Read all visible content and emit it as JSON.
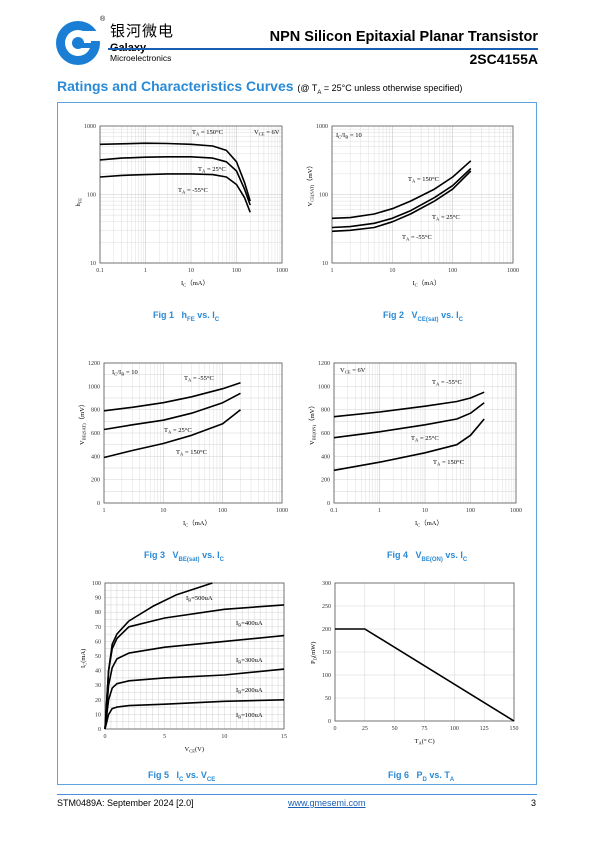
{
  "header": {
    "brand_cn": "银河微电",
    "brand_en": "Galaxy",
    "brand_en2": "Microelectronics",
    "reg_mark": "®",
    "title": "NPN Silicon Epitaxial Planar Transistor",
    "part": "2SC4155A"
  },
  "section": {
    "title": "Ratings and Characteristics Curves",
    "condition": "(@ T",
    "cond_sub": "A",
    "cond_rest": " = 25°C unless otherwise specified)"
  },
  "figures": {
    "fig1": {
      "num": "Fig 1",
      "label": "h",
      "sub": "FE",
      "rest": " vs. I",
      "sub2": "C"
    },
    "fig2": {
      "num": "Fig 2",
      "label": "V",
      "sub": "CE(sat)",
      "rest": " vs. I",
      "sub2": "C"
    },
    "fig3": {
      "num": "Fig 3",
      "label": "V",
      "sub": "BE(sat)",
      "rest": " vs. I",
      "sub2": "C"
    },
    "fig4": {
      "num": "Fig 4",
      "label": "V",
      "sub": "BE(ON)",
      "rest": " vs. I",
      "sub2": "C"
    },
    "fig5": {
      "num": "Fig 5",
      "label": "I",
      "sub": "C",
      "rest": " vs. V",
      "sub2": "CE"
    },
    "fig6": {
      "num": "Fig 6",
      "label": "P",
      "sub": "D",
      "rest": " vs. T",
      "sub2": "A"
    }
  },
  "chart_data": [
    {
      "type": "line",
      "id": "fig1",
      "xscale": "log",
      "yscale": "log",
      "xlim": [
        0.1,
        1000
      ],
      "ylim": [
        10,
        1000
      ],
      "xticks": [
        "0.1",
        "1",
        "10",
        "100",
        "1000"
      ],
      "yticks": [
        "10",
        "100",
        "1000"
      ],
      "xlabel": "I",
      "xlabel_sub": "C",
      "xlabel_unit": "（mA）",
      "ylabel": "h",
      "ylabel_sub": "FE",
      "annotations": [
        "V",
        "CE",
        "= 6V"
      ],
      "series": [
        {
          "name": "TA = 150°C",
          "x": [
            0.1,
            0.3,
            1,
            3,
            10,
            30,
            60,
            100,
            150,
            200
          ],
          "y": [
            540,
            550,
            560,
            555,
            540,
            510,
            440,
            300,
            150,
            80
          ]
        },
        {
          "name": "TA = 25°C",
          "x": [
            0.1,
            0.3,
            1,
            3,
            10,
            30,
            60,
            100,
            150,
            200
          ],
          "y": [
            320,
            340,
            350,
            355,
            355,
            340,
            300,
            220,
            120,
            70
          ]
        },
        {
          "name": "TA = -55°C",
          "x": [
            0.1,
            0.3,
            1,
            3,
            10,
            30,
            60,
            100,
            150,
            200
          ],
          "y": [
            180,
            190,
            195,
            200,
            200,
            195,
            180,
            140,
            90,
            55
          ]
        }
      ],
      "labels": {
        "a": "T",
        "a_sub": "A",
        "t1": "= 150°C",
        "t2": "= 25°C",
        "t3": "= -55°C"
      }
    },
    {
      "type": "line",
      "id": "fig2",
      "xscale": "log",
      "yscale": "log",
      "xlim": [
        1,
        1000
      ],
      "ylim": [
        10,
        1000
      ],
      "xticks": [
        "1",
        "10",
        "100",
        "1000"
      ],
      "yticks": [
        "10",
        "100",
        "1000"
      ],
      "xlabel": "I",
      "xlabel_sub": "C",
      "xlabel_unit": "（mA）",
      "ylabel": "V",
      "ylabel_sub": "CE(SAT)",
      "ylabel_unit": "（mV）",
      "annotations": [
        "I",
        "C",
        "/I",
        "B",
        "= 10"
      ],
      "series": [
        {
          "name": "TA = 150°C",
          "x": [
            1,
            2,
            5,
            10,
            20,
            50,
            100,
            200
          ],
          "y": [
            45,
            46,
            52,
            62,
            80,
            120,
            180,
            310
          ]
        },
        {
          "name": "TA = 25°C",
          "x": [
            1,
            2,
            5,
            10,
            20,
            50,
            100,
            200
          ],
          "y": [
            33,
            34,
            38,
            45,
            58,
            90,
            135,
            240
          ]
        },
        {
          "name": "TA = -55°C",
          "x": [
            1,
            2,
            5,
            10,
            20,
            50,
            100,
            200
          ],
          "y": [
            29,
            30,
            33,
            40,
            52,
            80,
            120,
            220
          ]
        }
      ],
      "labels": {
        "a": "T",
        "a_sub": "A",
        "t1": "= 150°C",
        "t2": "= 25°C",
        "t3": "= -55°C"
      }
    },
    {
      "type": "line",
      "id": "fig3",
      "xscale": "log",
      "yscale": "linear",
      "xlim": [
        1,
        1000
      ],
      "ylim": [
        0,
        1200
      ],
      "xticks": [
        "1",
        "10",
        "100",
        "1000"
      ],
      "yticks": [
        "0",
        "200",
        "400",
        "600",
        "800",
        "1000",
        "1200"
      ],
      "xlabel": "I",
      "xlabel_sub": "C",
      "xlabel_unit": "（mA）",
      "ylabel": "V",
      "ylabel_sub": "BE(SAT)",
      "ylabel_unit": "（mV）",
      "annotations": [
        "I",
        "C",
        "/I",
        "B",
        "= 10"
      ],
      "series": [
        {
          "name": "TA = -55°C",
          "x": [
            1,
            3,
            10,
            30,
            100,
            200
          ],
          "y": [
            790,
            820,
            860,
            910,
            980,
            1030
          ]
        },
        {
          "name": "TA = 25°C",
          "x": [
            1,
            3,
            10,
            30,
            100,
            200
          ],
          "y": [
            630,
            670,
            710,
            770,
            860,
            940
          ]
        },
        {
          "name": "TA = 150°C",
          "x": [
            1,
            3,
            10,
            30,
            100,
            200
          ],
          "y": [
            390,
            450,
            510,
            580,
            680,
            800
          ]
        }
      ],
      "labels": {
        "a": "T",
        "a_sub": "A",
        "t1": "= -55°C",
        "t2": "= 25°C",
        "t3": "= 150°C"
      }
    },
    {
      "type": "line",
      "id": "fig4",
      "xscale": "log",
      "yscale": "linear",
      "xlim": [
        0.1,
        1000
      ],
      "ylim": [
        0,
        1200
      ],
      "xticks": [
        "0.1",
        "1",
        "10",
        "100",
        "1000"
      ],
      "yticks": [
        "0",
        "200",
        "400",
        "600",
        "800",
        "1000",
        "1200"
      ],
      "xlabel": "I",
      "xlabel_sub": "C",
      "xlabel_unit": "（mA）",
      "ylabel": "V",
      "ylabel_sub": "BE(ON)",
      "ylabel_unit": "（mV）",
      "annotations": [
        "V",
        "CE",
        "= 6V"
      ],
      "series": [
        {
          "name": "TA = -55°C",
          "x": [
            0.1,
            1,
            10,
            50,
            100,
            200
          ],
          "y": [
            740,
            780,
            830,
            870,
            900,
            950
          ]
        },
        {
          "name": "TA = 25°C",
          "x": [
            0.1,
            1,
            10,
            50,
            100,
            200
          ],
          "y": [
            560,
            610,
            670,
            720,
            770,
            860
          ]
        },
        {
          "name": "TA = 150°C",
          "x": [
            0.1,
            1,
            10,
            50,
            100,
            200
          ],
          "y": [
            280,
            350,
            430,
            500,
            580,
            720
          ]
        }
      ],
      "labels": {
        "a": "T",
        "a_sub": "A",
        "t1": "= -55°C",
        "t2": "= 25°C",
        "t3": "= 150°C"
      }
    },
    {
      "type": "line",
      "id": "fig5",
      "xscale": "linear",
      "yscale": "linear",
      "xlim": [
        0,
        15
      ],
      "ylim": [
        0,
        100
      ],
      "xticks": [
        "0",
        "5",
        "10",
        "15"
      ],
      "yticks": [
        "0",
        "10",
        "20",
        "30",
        "40",
        "50",
        "60",
        "70",
        "80",
        "90",
        "100"
      ],
      "xlabel": "V",
      "xlabel_sub": "CE",
      "xlabel_unit": "(V)",
      "ylabel": "I",
      "ylabel_sub": "C",
      "ylabel_unit": "(mA)",
      "series": [
        {
          "name": "IB=500uA",
          "x": [
            0,
            0.3,
            0.6,
            1,
            2,
            4,
            6,
            9
          ],
          "y": [
            0,
            40,
            58,
            65,
            74,
            84,
            92,
            100
          ]
        },
        {
          "name": "IB=400uA",
          "x": [
            0,
            0.3,
            0.6,
            1,
            2,
            5,
            10,
            15
          ],
          "y": [
            0,
            40,
            55,
            62,
            70,
            76,
            82,
            85
          ]
        },
        {
          "name": "IB=300uA",
          "x": [
            0,
            0.3,
            0.6,
            1,
            2,
            5,
            10,
            15
          ],
          "y": [
            0,
            30,
            42,
            48,
            52,
            56,
            60,
            64
          ]
        },
        {
          "name": "IB=200uA",
          "x": [
            0,
            0.3,
            0.6,
            1,
            2,
            5,
            10,
            15
          ],
          "y": [
            0,
            20,
            28,
            31,
            33,
            35,
            37,
            41
          ]
        },
        {
          "name": "IB=100uA",
          "x": [
            0,
            0.3,
            0.6,
            1,
            2,
            5,
            10,
            15
          ],
          "y": [
            0,
            10,
            14,
            15,
            16,
            17,
            19,
            20
          ]
        }
      ],
      "labels": {
        "ib": "I",
        "ib_sub": "B",
        "l1": "=500uA",
        "l2": "=400uA",
        "l3": "=300uA",
        "l4": "=200uA",
        "l5": "=100uA"
      }
    },
    {
      "type": "line",
      "id": "fig6",
      "xscale": "linear",
      "yscale": "linear",
      "xlim": [
        0,
        150
      ],
      "ylim": [
        0,
        300
      ],
      "xticks": [
        "0",
        "25",
        "50",
        "75",
        "100",
        "125",
        "150"
      ],
      "yticks": [
        "0",
        "50",
        "100",
        "150",
        "200",
        "250",
        "300"
      ],
      "xlabel": "T",
      "xlabel_sub": "A",
      "xlabel_unit": "(° C)",
      "ylabel": "P",
      "ylabel_sub": "D",
      "ylabel_unit": "(mW)",
      "series": [
        {
          "name": "PD",
          "x": [
            0,
            25,
            150
          ],
          "y": [
            200,
            200,
            0
          ]
        }
      ]
    }
  ],
  "footer": {
    "doc": "STM0489A: September 2024 [2.0]",
    "url": "www.gmesemi.com",
    "page": "3"
  }
}
